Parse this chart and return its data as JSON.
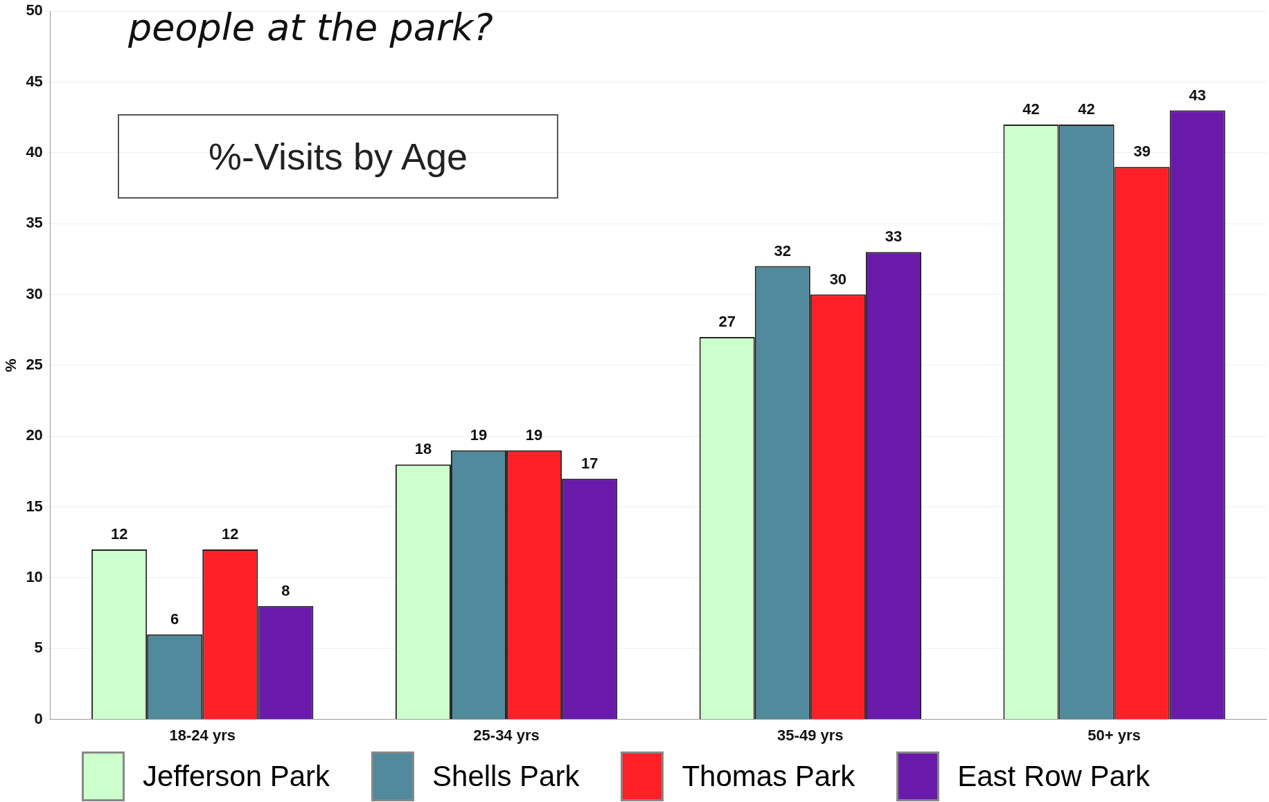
{
  "chart_data": {
    "type": "bar",
    "title": "people at the park?",
    "subtitle": "%-Visits by Age",
    "ylabel": "%",
    "categories": [
      "18-24 yrs",
      "25-34 yrs",
      "35-49 yrs",
      "50+ yrs"
    ],
    "series": [
      {
        "name": "Jefferson Park",
        "color": "#ccffcc",
        "values": [
          12,
          18,
          27,
          42
        ]
      },
      {
        "name": "Shells Park",
        "color": "#508a9c",
        "values": [
          6,
          19,
          32,
          42
        ]
      },
      {
        "name": "Thomas Park",
        "color": "#ff1f26",
        "values": [
          12,
          19,
          30,
          39
        ]
      },
      {
        "name": "East Row Park",
        "color": "#6a1aaa",
        "values": [
          8,
          17,
          33,
          43
        ]
      }
    ],
    "ylim": [
      0,
      50
    ],
    "yticks": [
      0,
      5,
      10,
      15,
      20,
      25,
      30,
      35,
      40,
      45,
      50
    ],
    "grid": "y",
    "legend": "bottom",
    "data_labels": true
  }
}
